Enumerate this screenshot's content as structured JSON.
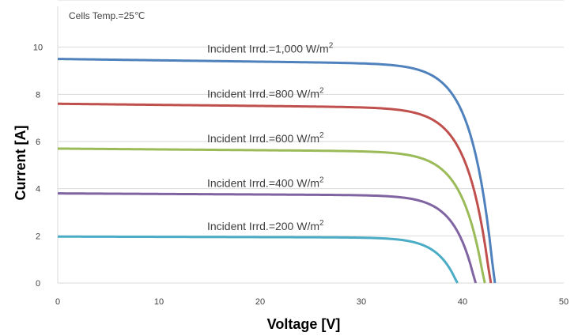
{
  "chart_data": {
    "type": "line",
    "annotation": "Cells Temp.=25℃",
    "xlabel": "Voltage [V]",
    "ylabel": "Current [A]",
    "xlim": [
      0,
      50
    ],
    "ylim": [
      0,
      12
    ],
    "xticks": [
      "0",
      "10",
      "20",
      "30",
      "40",
      "50"
    ],
    "yticks": [
      "0",
      "2",
      "4",
      "6",
      "8",
      "10"
    ],
    "grid": "horizontal",
    "series": [
      {
        "label_prefix": "Incident Irrd.=1,000 W/m",
        "label_sup": "2",
        "color": "#4F81BD",
        "isc": 9.5,
        "voc": 43.2,
        "knee": 36.5,
        "points": [
          [
            0,
            9.5
          ],
          [
            10,
            9.49
          ],
          [
            20,
            9.48
          ],
          [
            30,
            9.4
          ],
          [
            35,
            8.8
          ],
          [
            38,
            7.2
          ],
          [
            40,
            5.2
          ],
          [
            41.5,
            3.2
          ],
          [
            42.5,
            1.6
          ],
          [
            43.2,
            0
          ]
        ]
      },
      {
        "label_prefix": "Incident Irrd.=800 W/m",
        "label_sup": "2",
        "color": "#C0504D",
        "isc": 7.6,
        "voc": 42.8,
        "knee": 36.0,
        "points": [
          [
            0,
            7.6
          ],
          [
            10,
            7.59
          ],
          [
            20,
            7.58
          ],
          [
            30,
            7.5
          ],
          [
            35,
            6.9
          ],
          [
            38,
            5.5
          ],
          [
            40,
            3.8
          ],
          [
            41.5,
            2.1
          ],
          [
            42.8,
            0
          ]
        ]
      },
      {
        "label_prefix": "Incident Irrd.=600 W/m",
        "label_sup": "2",
        "color": "#9BBB59",
        "isc": 5.7,
        "voc": 42.2,
        "knee": 35.5,
        "points": [
          [
            0,
            5.7
          ],
          [
            10,
            5.69
          ],
          [
            20,
            5.68
          ],
          [
            30,
            5.6
          ],
          [
            35,
            5.1
          ],
          [
            38,
            3.9
          ],
          [
            40,
            2.5
          ],
          [
            41.2,
            1.2
          ],
          [
            42.2,
            0
          ]
        ]
      },
      {
        "label_prefix": "Incident Irrd.=400 W/m",
        "label_sup": "2",
        "color": "#8064A2",
        "isc": 3.8,
        "voc": 41.3,
        "knee": 35.0,
        "points": [
          [
            0,
            3.8
          ],
          [
            10,
            3.79
          ],
          [
            20,
            3.78
          ],
          [
            30,
            3.72
          ],
          [
            35,
            3.3
          ],
          [
            38,
            2.4
          ],
          [
            40,
            1.3
          ],
          [
            41.3,
            0
          ]
        ]
      },
      {
        "label_prefix": "Incident Irrd.=200 W/m",
        "label_sup": "2",
        "color": "#4BACC6",
        "isc": 1.97,
        "voc": 39.5,
        "knee": 33.5,
        "points": [
          [
            0,
            1.97
          ],
          [
            10,
            1.97
          ],
          [
            20,
            1.96
          ],
          [
            30,
            1.92
          ],
          [
            35,
            1.7
          ],
          [
            37.5,
            1.1
          ],
          [
            39.5,
            0
          ]
        ]
      }
    ]
  }
}
